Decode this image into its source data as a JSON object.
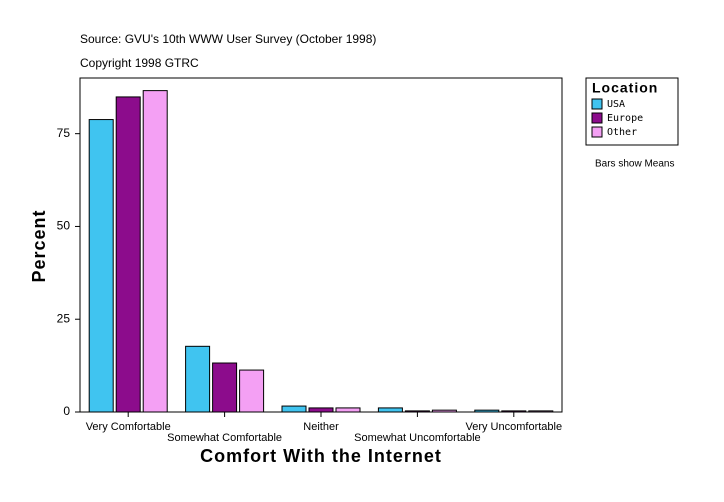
{
  "chart_data": {
    "type": "bar",
    "subtitle": "Source: GVU's 10th WWW User Survey (October 1998)",
    "copyright": "Copyright 1998 GTRC",
    "x_label": "Comfort With the Internet",
    "y_label": "Percent",
    "legend_title": "Location",
    "note": "Bars show Means",
    "categories": [
      "Very Comfortable",
      "Somewhat Comfortable",
      "Neither",
      "Somewhat Uncomfortable",
      "Very Uncomfortable"
    ],
    "series": [
      {
        "name": "USA",
        "color": "#40c4f0",
        "values": [
          78.8,
          17.7,
          1.6,
          1.1,
          0.5
        ]
      },
      {
        "name": "Europe",
        "color": "#8c0c8c",
        "values": [
          84.9,
          13.2,
          1.1,
          0.3,
          0.3
        ]
      },
      {
        "name": "Other",
        "color": "#f4a0f4",
        "values": [
          86.6,
          11.3,
          1.1,
          0.5,
          0.3
        ]
      }
    ],
    "ylim": [
      0,
      90
    ],
    "yticks": [
      0,
      25,
      50,
      75
    ]
  }
}
